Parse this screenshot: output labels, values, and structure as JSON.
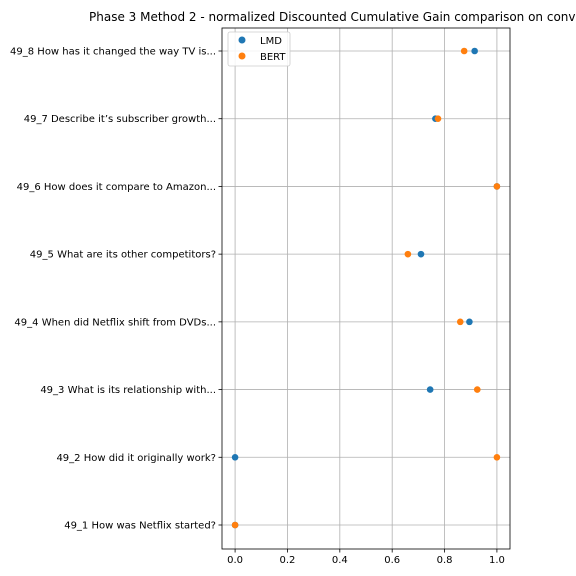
{
  "chart_data": {
    "type": "scatter",
    "title": "Phase 3 Method 2 - normalized Discounted Cumulative Gain comparison on conv",
    "xlabel": "",
    "ylabel": "",
    "xlim": [
      -0.05,
      1.05
    ],
    "xticks": [
      0.0,
      0.2,
      0.4,
      0.6,
      0.8,
      1.0
    ],
    "xtick_labels": [
      "0.0",
      "0.2",
      "0.4",
      "0.6",
      "0.8",
      "1.0"
    ],
    "grid": true,
    "legend_position": "top-left",
    "categories": [
      "49_1 How was Netflix started?",
      "49_2 How did it originally work?",
      "49_3 What is its relationship with...",
      "49_4 When did Netflix shift from DVDs...",
      "49_5 What are its other competitors?",
      "49_6 How does it compare to Amazon...",
      "49_7 Describe it’s subscriber growth...",
      "49_8 How has it changed the way TV is..."
    ],
    "series": [
      {
        "name": "LMD",
        "color": "#1f77b4",
        "values": [
          0.0,
          0.0,
          0.745,
          0.895,
          0.71,
          1.0,
          0.765,
          0.915
        ]
      },
      {
        "name": "BERT",
        "color": "#ff7f0e",
        "values": [
          0.0,
          1.0,
          0.925,
          0.86,
          0.66,
          1.0,
          0.775,
          0.875
        ]
      }
    ]
  }
}
